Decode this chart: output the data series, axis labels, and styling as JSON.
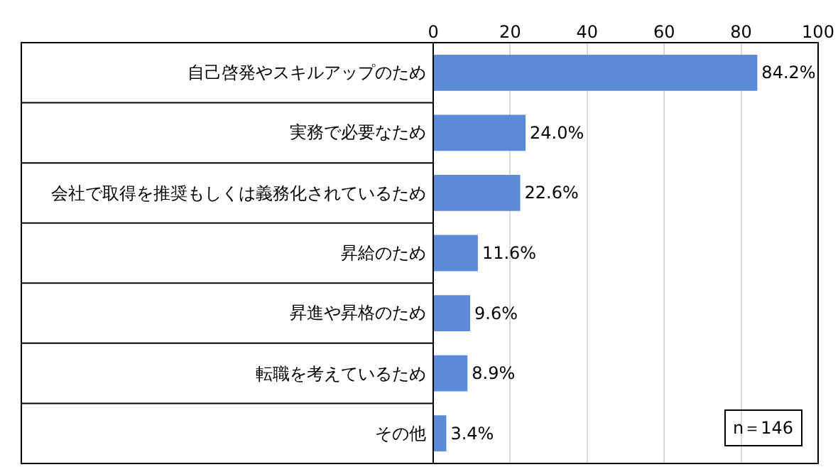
{
  "chart_data": {
    "type": "bar",
    "orientation": "horizontal",
    "categories": [
      "自己啓発やスキルアップのため",
      "実務で必要なため",
      "会社で取得を推奨もしくは義務化されているため",
      "昇給のため",
      "昇進や昇格のため",
      "転職を考えているため",
      "その他"
    ],
    "values": [
      84.2,
      24.0,
      22.6,
      11.6,
      9.6,
      8.9,
      3.4
    ],
    "value_labels": [
      "84.2%",
      "24.0%",
      "22.6%",
      "11.6%",
      "9.6%",
      "8.9%",
      "3.4%"
    ],
    "color": "#5b8ad8",
    "xlim": [
      0,
      100
    ],
    "xticks": [
      0,
      20,
      40,
      60,
      80,
      100
    ],
    "grid": "x",
    "annotations": [
      "n＝146"
    ]
  }
}
